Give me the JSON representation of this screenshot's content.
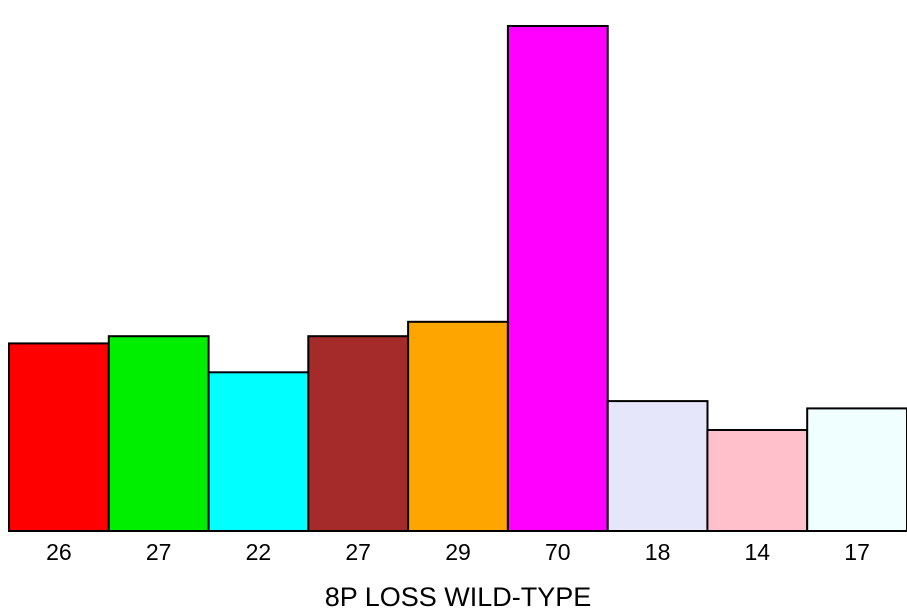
{
  "chart_data": {
    "type": "bar",
    "categories": [
      "26",
      "27",
      "22",
      "27",
      "29",
      "70",
      "18",
      "14",
      "17"
    ],
    "values": [
      26,
      27,
      22,
      27,
      29,
      70,
      18,
      14,
      17
    ],
    "colors": [
      "#ff0000",
      "#00ee00",
      "#00ffff",
      "#a52a2a",
      "#ffa500",
      "#ff00ff",
      "#e6e6fa",
      "#ffc0cb",
      "#f0ffff"
    ],
    "xlabel": "8P LOSS WILD-TYPE",
    "ylim": [
      0,
      70
    ],
    "grid": false,
    "legend": "none"
  }
}
